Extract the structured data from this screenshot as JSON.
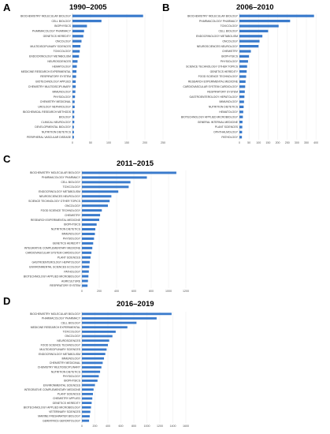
{
  "chart_data": [
    {
      "panel": "A",
      "title": "1990–2005",
      "type": "bar",
      "orientation": "horizontal",
      "categories": [
        "BIOCHEMISTRY MOLECULAR BIOLOGY",
        "CELL BIOLOGY",
        "BIOPHYSICS",
        "PHARMACOLOGY PHARMACY",
        "GENETICS HEREDITY",
        "ONCOLOGY",
        "MULTIDISCIPLINARY SCIENCES",
        "TOXICOLOGY",
        "ENDOCRINOLOGY METABOLISM",
        "NEUROSCIENCES",
        "HEMATOLOGY",
        "MEDICINE RESEARCH EXPERIMENTAL",
        "RESPIRATORY SYSTEM",
        "BIOTECHNOLOGY APPLIED",
        "CHEMISTRY MULTIDISCIPLINARY",
        "IMMUNOLOGY",
        "PHYSIOLOGY",
        "CHEMISTRY MEDICINAL",
        "UROLOGY NEPHROLOGY",
        "BIOCHEMICAL RESEARCH METHODS",
        "BIOLOGY",
        "CLINICAL NEUROLOGY",
        "DEVELOPMENTAL BIOLOGY",
        "NUTRITION DIETETICS",
        "PERIPHERAL VASCULAR DISEASE"
      ],
      "values": [
        195,
        80,
        40,
        32,
        30,
        25,
        22,
        20,
        18,
        14,
        12,
        11,
        10,
        9,
        9,
        8,
        7,
        6,
        6,
        5,
        5,
        5,
        4,
        4,
        4
      ],
      "xticks": [
        0,
        50,
        100,
        150,
        200,
        250
      ],
      "xlim": [
        0,
        250
      ]
    },
    {
      "panel": "B",
      "title": "2006–2010",
      "type": "bar",
      "orientation": "horizontal",
      "categories": [
        "BIOCHEMISTRY MOLECULAR BIOLOGY",
        "PHARMACOLOGY PHARMACY",
        "TOXICOLOGY",
        "CELL BIOLOGY",
        "ENDOCRINOLOGY METABOLISM",
        "ONCOLOGY",
        "NEUROSCIENCES NEUROLOGY",
        "CHEMISTRY",
        "BIOPHYSICS",
        "PHYSIOLOGY",
        "SCIENCE TECHNOLOGY OTHER TOPICS",
        "GENETICS HEREDITY",
        "FOOD SCIENCE TECHNOLOGY",
        "RESEARCH EXPERIMENTAL MEDICINE",
        "CARDIOVASCULAR SYSTEM CARDIOLOGY",
        "RESPIRATORY SYSTEM",
        "GASTROENTEROLOGY HEPATOLOGY",
        "IMMUNOLOGY",
        "NUTRITION DIETETICS",
        "HEMATOLOGY",
        "BIOTECHNOLOGY APPLIED MICROBIOLOGY",
        "GENERAL INTERNAL MEDICINE",
        "PLANT SCIENCES",
        "OPHTHALMOLOGY",
        "PATHOLOGY"
      ],
      "values": [
        390,
        265,
        205,
        150,
        120,
        105,
        100,
        60,
        50,
        45,
        40,
        38,
        35,
        32,
        30,
        28,
        26,
        24,
        22,
        20,
        18,
        16,
        15,
        14,
        13
      ],
      "xticks": [
        0,
        50,
        100,
        150,
        200,
        250,
        300,
        350,
        400
      ],
      "xlim": [
        0,
        420
      ]
    },
    {
      "panel": "C",
      "title": "2011–2015",
      "type": "bar",
      "orientation": "horizontal",
      "categories": [
        "BIOCHEMISTRY MOLECULAR BIOLOGY",
        "PHARMACOLOGY PHARMACY",
        "CELL BIOLOGY",
        "TOXICOLOGY",
        "ENDOCRINOLOGY METABOLISM",
        "NEUROSCIENCES NEUROLOGY",
        "SCIENCE TECHNOLOGY OTHER TOPICS",
        "ONCOLOGY",
        "FOOD SCIENCE TECHNOLOGY",
        "CHEMISTRY",
        "RESEARCH EXPERIMENTAL MEDICINE",
        "BIOPHYSICS",
        "NUTRITION DIETETICS",
        "IMMUNOLOGY",
        "PHYSIOLOGY",
        "GENETICS HEREDITY",
        "INTEGRATIVE COMPLEMENTARY MEDICINE",
        "CARDIOVASCULAR SYSTEM CARDIOLOGY",
        "PLANT SCIENCES",
        "GASTROENTEROLOGY HEPATOLOGY",
        "ENVIRONMENTAL SCIENCES ECOLOGY",
        "PATHOLOGY",
        "BIOTECHNOLOGY APPLIED MICROBIOLOGY",
        "AGRICULTURE",
        "RESPIRATORY SYSTEM"
      ],
      "values": [
        1090,
        750,
        560,
        540,
        420,
        340,
        320,
        300,
        230,
        210,
        200,
        170,
        155,
        150,
        140,
        130,
        120,
        110,
        100,
        90,
        85,
        80,
        75,
        70,
        65
      ],
      "xticks": [
        0,
        200,
        400,
        600,
        800,
        1000,
        1200
      ],
      "xlim": [
        0,
        1200
      ]
    },
    {
      "panel": "D",
      "title": "2016–2019",
      "type": "bar",
      "orientation": "horizontal",
      "categories": [
        "BIOCHEMISTRY MOLECULAR BIOLOGY",
        "PHARMACOLOGY PHARMACY",
        "CELL BIOLOGY",
        "MEDICINE RESEARCH EXPERIMENTAL",
        "TOXICOLOGY",
        "ONCOLOGY",
        "NEUROSCIENCES",
        "FOOD SCIENCE TECHNOLOGY",
        "MULTIDISCIPLINARY SCIENCES",
        "ENDOCRINOLOGY METABOLISM",
        "IMMUNOLOGY",
        "CHEMISTRY MEDICINAL",
        "CHEMISTRY MULTIDISCIPLINARY",
        "NUTRITION DIETETICS",
        "PHYSIOLOGY",
        "BIOPHYSICS",
        "ENVIRONMENTAL SCIENCES",
        "INTEGRATIVE COMPLEMENTARY MEDICINE",
        "PLANT SCIENCES",
        "CHEMISTRY APPLIED",
        "GENETICS HEREDITY",
        "BIOTECHNOLOGY APPLIED MICROBIOLOGY",
        "VETERINARY SCIENCES",
        "MARINE FRESHWATER BIOLOGY",
        "GERIATRICS GERONTOLOGY"
      ],
      "values": [
        1380,
        1150,
        840,
        700,
        520,
        470,
        420,
        400,
        380,
        360,
        340,
        320,
        300,
        280,
        260,
        240,
        200,
        180,
        170,
        160,
        150,
        140,
        130,
        120,
        110
      ],
      "xticks": [
        0,
        200,
        400,
        600,
        800,
        1000,
        1200,
        1400,
        1600
      ],
      "xlim": [
        0,
        1600
      ]
    }
  ]
}
